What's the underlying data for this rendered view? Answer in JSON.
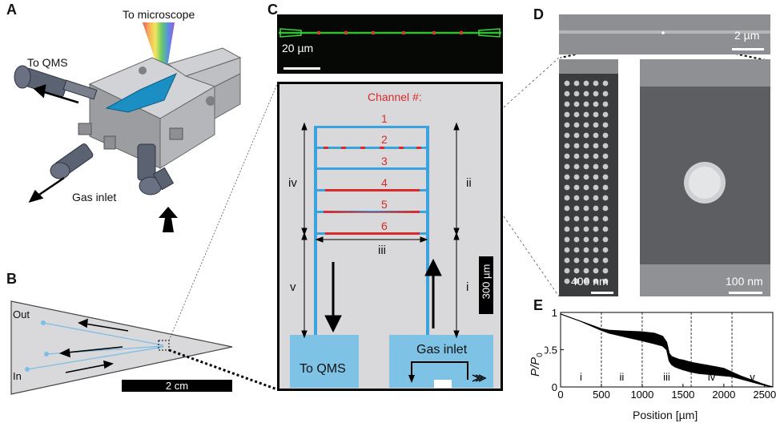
{
  "panels": {
    "a": {
      "letter": "A",
      "to_microscope": "To microscope",
      "to_qms": "To QMS",
      "gas_inlet": "Gas inlet"
    },
    "b": {
      "letter": "B",
      "out_label": "Out",
      "in_label": "In",
      "scale_bar": "2 cm"
    },
    "c": {
      "letter": "C",
      "scale_bar": "20 µm",
      "channel_heading": "Channel #:",
      "channels": [
        "1",
        "2",
        "3",
        "4",
        "5",
        "6"
      ],
      "sections": [
        "iv",
        "ii",
        "iii",
        "v",
        "i"
      ],
      "vertical_scale": "300 µm",
      "to_qms": "To QMS",
      "gas_inlet": "Gas inlet"
    },
    "d": {
      "letter": "D",
      "scale_top": "2 µm",
      "scale_left": "400 nm",
      "scale_right": "100 nm"
    },
    "e": {
      "letter": "E",
      "ylabel": "P/P",
      "ylabel_sub": "0",
      "xlabel": "Position [µm]",
      "sections": [
        "i",
        "ii",
        "iii",
        "iv",
        "v"
      ]
    }
  },
  "chart_data": {
    "type": "area",
    "title": "",
    "xlabel": "Position [µm]",
    "ylabel": "P/P0",
    "xlim": [
      0,
      2600
    ],
    "ylim": [
      0,
      1
    ],
    "xticks": [
      0,
      500,
      1000,
      1500,
      2000,
      2500
    ],
    "yticks": [
      0,
      0.5,
      1
    ],
    "section_boundaries": [
      500,
      1000,
      1600,
      2100
    ],
    "section_labels": [
      "i",
      "ii",
      "iii",
      "iv",
      "v"
    ],
    "series": [
      {
        "x": [
          0,
          250,
          500,
          600,
          800,
          1000,
          1150,
          1250,
          1300,
          1330,
          1360,
          1400,
          1450,
          1500,
          1600,
          1700,
          1800,
          1900,
          2000,
          2100,
          2200,
          2300,
          2400,
          2500,
          2600
        ],
        "upper": [
          0.98,
          0.88,
          0.78,
          0.76,
          0.75,
          0.74,
          0.72,
          0.68,
          0.6,
          0.45,
          0.41,
          0.39,
          0.37,
          0.36,
          0.33,
          0.31,
          0.29,
          0.27,
          0.25,
          0.2,
          0.15,
          0.11,
          0.07,
          0.03,
          0.0
        ],
        "lower": [
          0.98,
          0.88,
          0.76,
          0.72,
          0.67,
          0.62,
          0.58,
          0.55,
          0.5,
          0.35,
          0.3,
          0.27,
          0.25,
          0.23,
          0.2,
          0.18,
          0.17,
          0.16,
          0.15,
          0.14,
          0.11,
          0.08,
          0.05,
          0.02,
          0.0
        ]
      }
    ]
  }
}
